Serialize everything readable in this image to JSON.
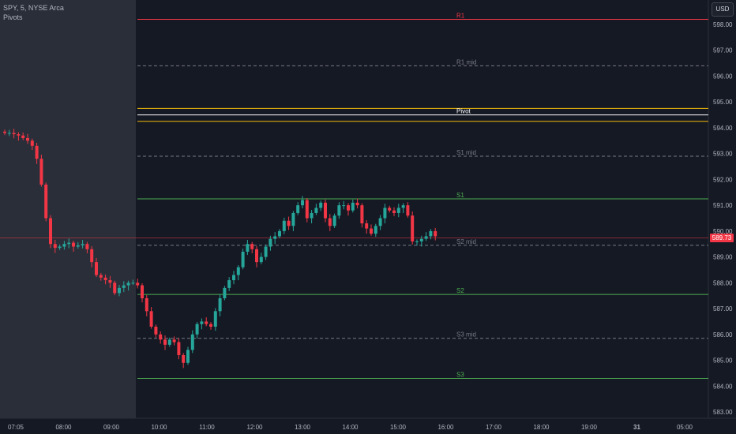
{
  "legend": {
    "symbol": "SPY, 5, NYSE Arca",
    "indicator": "Pivots"
  },
  "currency": "USD",
  "last_price": "589.73",
  "colors": {
    "background": "#151924",
    "premarket_shade": "#2a2e39",
    "up": "#26a69a",
    "down": "#f23645",
    "r_line": "#f23645",
    "s_line": "#4caf50",
    "pivot_line": "#ffffff",
    "pivot_bands": "#f0b90b",
    "mid_line": "#787b86"
  },
  "chart_data": {
    "type": "candlestick",
    "y_axis": {
      "min": 583,
      "max": 598,
      "ticks": [
        "598.00",
        "597.00",
        "596.00",
        "595.00",
        "594.00",
        "593.00",
        "592.00",
        "591.00",
        "590.00",
        "589.00",
        "588.00",
        "587.00",
        "586.00",
        "585.00",
        "584.00",
        "583.00"
      ]
    },
    "x_axis": {
      "ticks": [
        "07:05",
        "08:00",
        "09:00",
        "10:00",
        "11:00",
        "12:00",
        "13:00",
        "14:00",
        "15:00",
        "16:00",
        "17:00",
        "18:00",
        "19:00",
        "31",
        "05:00"
      ]
    },
    "pivot_levels": [
      {
        "label": "R1",
        "value": 598.2,
        "kind": "r"
      },
      {
        "label": "R1 mid",
        "value": 596.4,
        "kind": "mid"
      },
      {
        "label": "Pivot",
        "value": 594.5,
        "kind": "pivot"
      },
      {
        "label": "S1 mid",
        "value": 592.9,
        "kind": "mid"
      },
      {
        "label": "S1",
        "value": 591.25,
        "kind": "s"
      },
      {
        "label": "S2 mid",
        "value": 589.45,
        "kind": "mid"
      },
      {
        "label": "S2",
        "value": 587.55,
        "kind": "s"
      },
      {
        "label": "S3 mid",
        "value": 585.85,
        "kind": "mid"
      },
      {
        "label": "S3",
        "value": 584.3,
        "kind": "s"
      }
    ],
    "pivot_bands": [
      594.75,
      594.25
    ],
    "candles_close": [
      593.8,
      593.8,
      593.75,
      593.7,
      593.6,
      593.5,
      593.3,
      592.8,
      591.8,
      590.5,
      589.5,
      589.35,
      589.4,
      589.5,
      589.55,
      589.4,
      589.45,
      589.5,
      589.3,
      588.8,
      588.3,
      588.2,
      588.1,
      588.0,
      587.6,
      587.8,
      587.9,
      588.0,
      588.0,
      587.9,
      587.4,
      586.9,
      586.3,
      586.0,
      585.8,
      585.6,
      585.8,
      585.7,
      585.2,
      584.9,
      585.4,
      586.0,
      586.4,
      586.5,
      586.4,
      586.3,
      586.9,
      587.4,
      587.8,
      588.1,
      588.3,
      588.6,
      589.2,
      589.5,
      589.3,
      588.8,
      589.0,
      589.4,
      589.7,
      589.8,
      590.0,
      590.4,
      590.2,
      590.7,
      591.0,
      591.2,
      590.5,
      590.7,
      590.9,
      591.1,
      590.5,
      590.2,
      590.6,
      591.0,
      591.0,
      590.8,
      591.1,
      591.0,
      590.3,
      590.1,
      589.9,
      590.2,
      590.5,
      590.9,
      590.8,
      590.7,
      590.9,
      591.0,
      590.6,
      589.6,
      589.6,
      589.7,
      589.8,
      590.0,
      589.8
    ]
  }
}
